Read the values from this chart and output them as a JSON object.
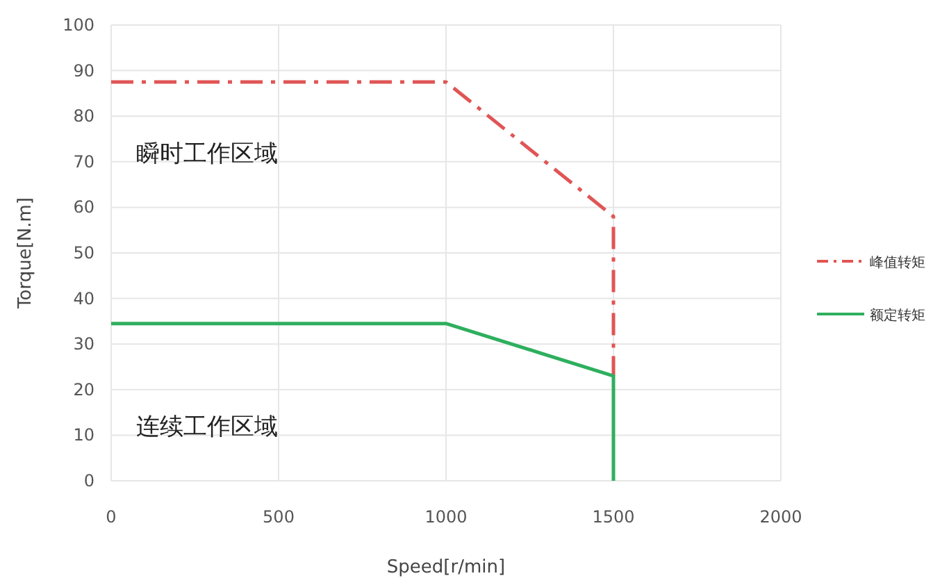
{
  "chart_data": {
    "type": "line",
    "xlabel": "Speed[r/min]",
    "ylabel": "Torque[N.m]",
    "xlim": [
      0,
      2000
    ],
    "xticks": [
      0,
      500,
      1000,
      1500,
      2000
    ],
    "ylim": [
      0,
      100
    ],
    "yticks": [
      0,
      10,
      20,
      30,
      40,
      50,
      60,
      70,
      80,
      90,
      100
    ],
    "grid": true,
    "legend": "right",
    "marker": "none",
    "series": [
      {
        "name": "峰值转矩",
        "color": "#e05555",
        "line_style": "dashed",
        "x": [
          0,
          1000,
          1500,
          1500
        ],
        "values": [
          87.5,
          87.5,
          58,
          23
        ]
      },
      {
        "name": "额定转矩",
        "color": "#2eaf5e",
        "line_style": "solid",
        "x": [
          0,
          1000,
          1500,
          1500
        ],
        "values": [
          34.5,
          34.5,
          23,
          0
        ]
      }
    ],
    "annotations": [
      "瞬时工作区域",
      "连续工作区域"
    ]
  }
}
